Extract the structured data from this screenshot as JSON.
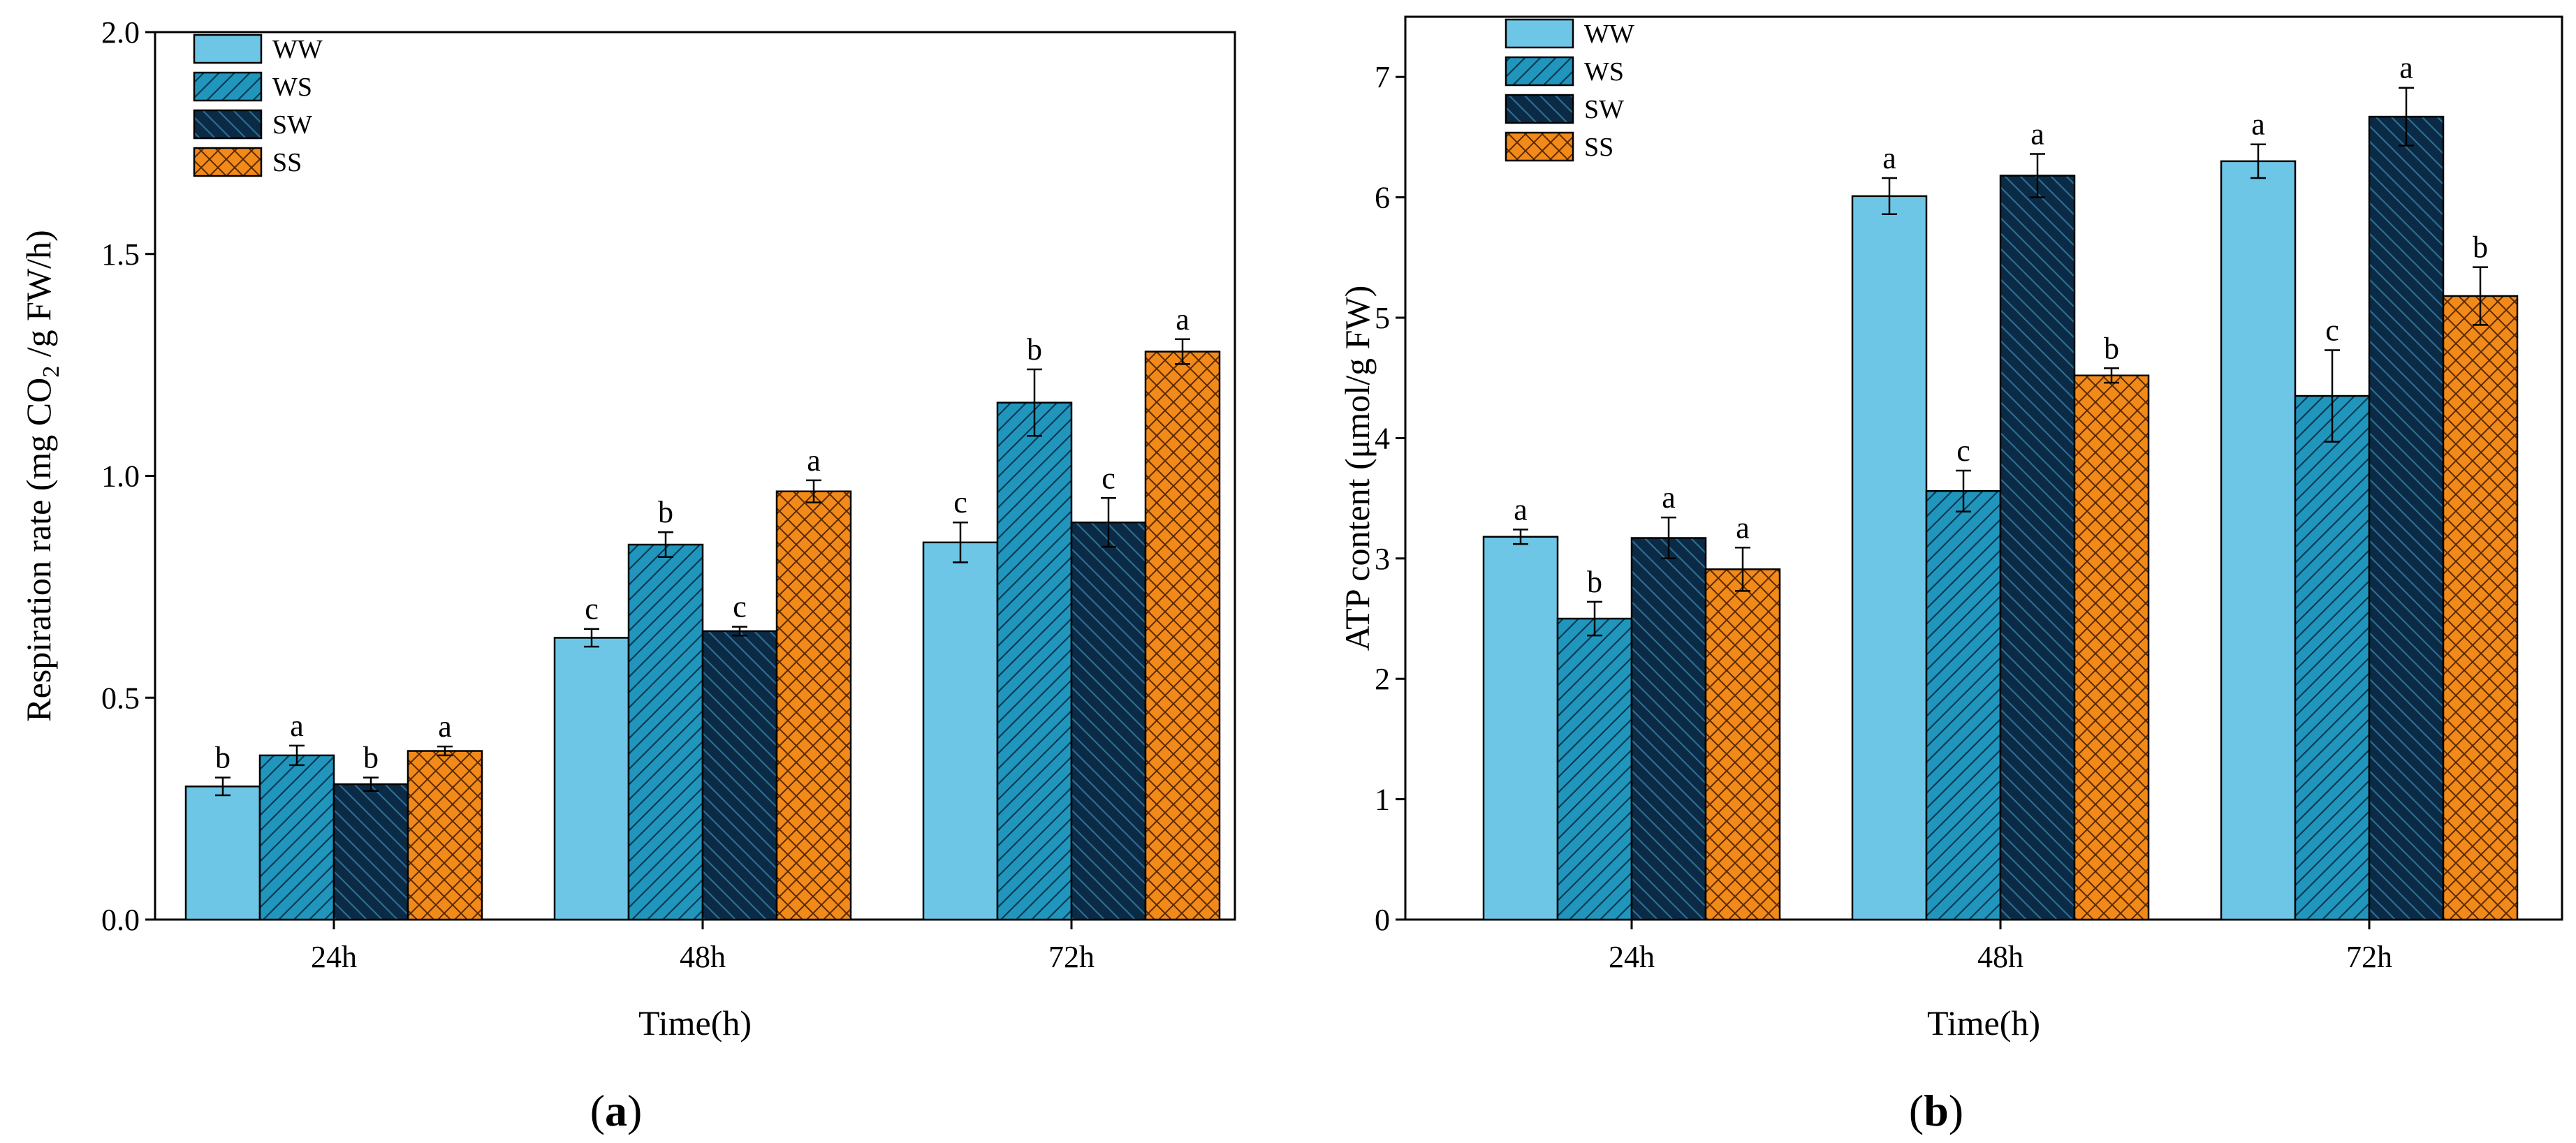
{
  "legend": [
    "WW",
    "WS",
    "SW",
    "SS"
  ],
  "colors": {
    "WW": "#6EC6E6",
    "WS": "#2196BD",
    "SW": "#0B2A45",
    "SS": "#F28A1A"
  },
  "chart_data": [
    {
      "type": "bar",
      "panel": "a",
      "title": "",
      "xlabel": "Time(h)",
      "ylabel_main": "Respiration rate (mg CO",
      "ylabel_sub": "2",
      "ylabel_rest": " /g FW/h)",
      "categories": [
        "24h",
        "48h",
        "72h"
      ],
      "ylim": [
        0,
        2.0
      ],
      "yticks": [
        "0.0",
        "0.5",
        "1.0",
        "1.5",
        "2.0"
      ],
      "ytick_values": [
        0,
        0.5,
        1.0,
        1.5,
        2.0
      ],
      "series": [
        {
          "name": "WW",
          "values": [
            0.3,
            0.635,
            0.85
          ],
          "errors": [
            0.02,
            0.02,
            0.045
          ],
          "letters": [
            "b",
            "c",
            "c"
          ]
        },
        {
          "name": "WS",
          "values": [
            0.37,
            0.845,
            1.165
          ],
          "errors": [
            0.022,
            0.028,
            0.075
          ],
          "letters": [
            "a",
            "b",
            "b"
          ]
        },
        {
          "name": "SW",
          "values": [
            0.305,
            0.65,
            0.895
          ],
          "errors": [
            0.015,
            0.01,
            0.055
          ],
          "letters": [
            "b",
            "c",
            "c"
          ]
        },
        {
          "name": "SS",
          "values": [
            0.38,
            0.965,
            1.28
          ],
          "errors": [
            0.01,
            0.025,
            0.028
          ],
          "letters": [
            "a",
            "a",
            "a"
          ]
        }
      ]
    },
    {
      "type": "bar",
      "panel": "b",
      "title": "",
      "xlabel": "Time(h)",
      "ylabel_main": "ATP content (μmol/g FW)",
      "ylabel_sub": "",
      "ylabel_rest": "",
      "categories": [
        "24h",
        "48h",
        "72h"
      ],
      "ylim": [
        0,
        7.5
      ],
      "yticks": [
        "0",
        "1",
        "2",
        "3",
        "4",
        "5",
        "6",
        "7"
      ],
      "ytick_values": [
        0,
        1,
        2,
        3,
        4,
        5,
        6,
        7
      ],
      "series": [
        {
          "name": "WW",
          "values": [
            3.18,
            6.01,
            6.3
          ],
          "errors": [
            0.06,
            0.15,
            0.14
          ],
          "letters": [
            "a",
            "a",
            "a"
          ]
        },
        {
          "name": "WS",
          "values": [
            2.5,
            3.56,
            4.35
          ],
          "errors": [
            0.14,
            0.17,
            0.38
          ],
          "letters": [
            "b",
            "c",
            "c"
          ]
        },
        {
          "name": "SW",
          "values": [
            3.17,
            6.18,
            6.67
          ],
          "errors": [
            0.17,
            0.18,
            0.24
          ],
          "letters": [
            "a",
            "a",
            "a"
          ]
        },
        {
          "name": "SS",
          "values": [
            2.91,
            4.52,
            5.18
          ],
          "errors": [
            0.18,
            0.06,
            0.24
          ],
          "letters": [
            "a",
            "b",
            "b"
          ]
        }
      ]
    }
  ],
  "panel_labels": [
    "a",
    "b"
  ]
}
